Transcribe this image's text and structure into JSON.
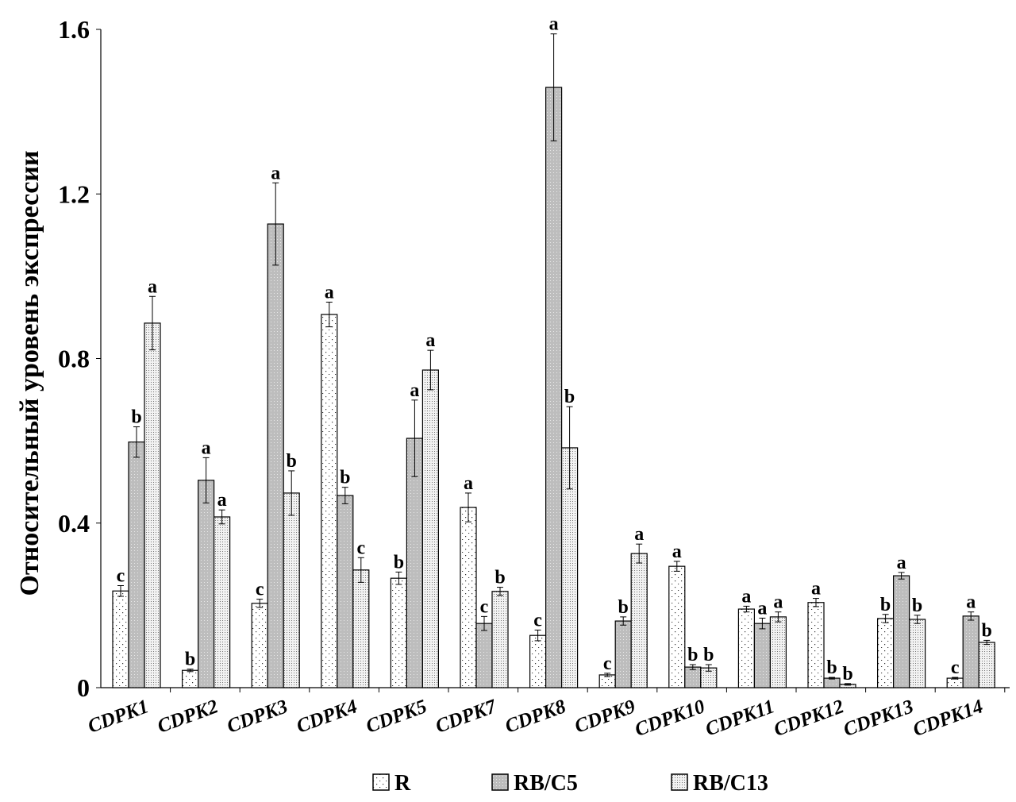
{
  "chart_data": {
    "type": "bar",
    "title": "",
    "xlabel": "",
    "ylabel": "Относительный уровень экспрессии",
    "ylim": [
      0,
      1.6
    ],
    "yticks": [
      "0",
      "0.4",
      "0.8",
      "1.2",
      "1.6"
    ],
    "ytick_values": [
      0,
      0.4,
      0.8,
      1.2,
      1.6
    ],
    "grid": false,
    "legend_position": "bottom",
    "categories": [
      "CDPK1",
      "CDPK2",
      "CDPK3",
      "CDPK4",
      "CDPK5",
      "CDPK7",
      "CDPK8",
      "CDPK9",
      "CDPK10",
      "CDPK11",
      "CDPK12",
      "CDPK13",
      "CDPK14"
    ],
    "series": [
      {
        "name": "R",
        "pattern": "sparse-dots",
        "values": [
          0.235,
          0.042,
          0.205,
          0.907,
          0.266,
          0.438,
          0.127,
          0.031,
          0.295,
          0.191,
          0.207,
          0.168,
          0.023
        ],
        "errors": [
          0.013,
          0.003,
          0.01,
          0.03,
          0.015,
          0.035,
          0.013,
          0.004,
          0.012,
          0.007,
          0.01,
          0.01,
          0.002
        ],
        "letters": [
          "c",
          "b",
          "c",
          "a",
          "b",
          "a",
          "c",
          "c",
          "a",
          "a",
          "a",
          "b",
          "c"
        ]
      },
      {
        "name": "RB/C5",
        "pattern": "gray-dots",
        "values": [
          0.597,
          0.504,
          1.127,
          0.467,
          0.606,
          0.156,
          1.459,
          0.162,
          0.05,
          0.156,
          0.023,
          0.272,
          0.174
        ],
        "errors": [
          0.037,
          0.055,
          0.1,
          0.02,
          0.093,
          0.017,
          0.13,
          0.01,
          0.006,
          0.013,
          0.002,
          0.008,
          0.01
        ],
        "letters": [
          "b",
          "a",
          "a",
          "b",
          "a",
          "c",
          "a",
          "b",
          "b",
          "a",
          "b",
          "a",
          "a"
        ]
      },
      {
        "name": "RB/C13",
        "pattern": "fine-dots",
        "values": [
          0.886,
          0.415,
          0.473,
          0.286,
          0.772,
          0.234,
          0.583,
          0.326,
          0.048,
          0.172,
          0.008,
          0.166,
          0.11
        ],
        "errors": [
          0.065,
          0.017,
          0.054,
          0.03,
          0.048,
          0.01,
          0.1,
          0.023,
          0.008,
          0.012,
          0.002,
          0.01,
          0.005
        ],
        "letters": [
          "a",
          "a",
          "b",
          "c",
          "a",
          "b",
          "b",
          "a",
          "b",
          "a",
          "b",
          "b",
          "b"
        ]
      }
    ]
  }
}
